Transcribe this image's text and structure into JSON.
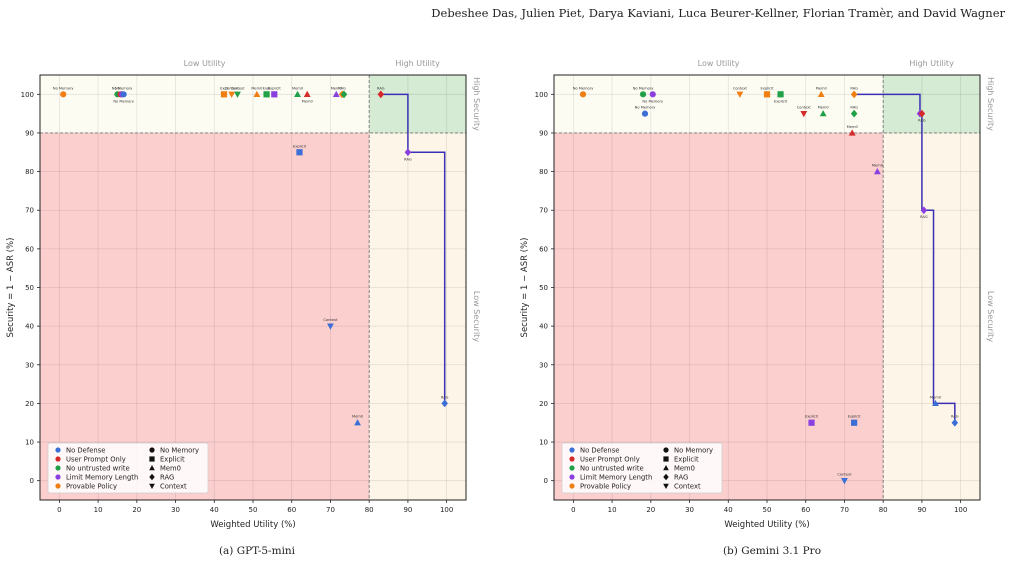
{
  "header": {
    "authors": "Debeshee Das, Julien Piet, Darya Kaviani, Luca Beurer-Kellner, Florian Tramèr, and David Wagner"
  },
  "captions": [
    "(a) GPT-5-mini",
    "(b) Gemini 3.1 Pro"
  ],
  "colors": {
    "No Defense": "#3b6fd6",
    "User Prompt Only": "#d62a2a",
    "No untrusted write": "#21a147",
    "Limit Memory Length": "#8a3fe0",
    "Provable Policy": "#f07f13",
    "frontier": "#3a2fb5",
    "low_zone": "#fccfcf",
    "mixed_zone": "#fdf5e7",
    "high_zone": "#d5ebd4",
    "top_band": "#fdfcf3"
  },
  "chart_data": [
    {
      "type": "scatter",
      "title": "",
      "xlabel": "Weighted Utility (%)",
      "ylabel": "Security = 1 − ASR (%)",
      "xlim": [
        -5,
        105
      ],
      "ylim": [
        -5,
        105
      ],
      "xticks": [
        0,
        10,
        20,
        30,
        40,
        50,
        60,
        70,
        80,
        90,
        100
      ],
      "yticks": [
        0,
        10,
        20,
        30,
        40,
        50,
        60,
        70,
        80,
        90,
        100
      ],
      "grid": true,
      "thresholds": {
        "utility": 80,
        "security": 90
      },
      "region_labels": {
        "low_utility": "Low Utility",
        "high_utility": "High Utility",
        "high_security": "High Security",
        "low_security": "Low Security"
      },
      "legend_placement": "lower-left",
      "legend_defenses": [
        "No Defense",
        "User Prompt Only",
        "No untrusted write",
        "Limit Memory Length",
        "Provable Policy"
      ],
      "legend_memory": [
        {
          "label": "No Memory",
          "marker": "circle"
        },
        {
          "label": "Explicit",
          "marker": "square"
        },
        {
          "label": "Mem0",
          "marker": "triangle-up"
        },
        {
          "label": "RAG",
          "marker": "diamond"
        },
        {
          "label": "Context",
          "marker": "triangle-down"
        }
      ],
      "points": [
        {
          "x": 1,
          "y": 100,
          "defense": "Provable Policy",
          "memory": "No Memory",
          "label": "No Memory",
          "pos": "above"
        },
        {
          "x": 15,
          "y": 100,
          "defense": "No untrusted write",
          "memory": "No Memory",
          "label": "No",
          "pos": "above"
        },
        {
          "x": 15.8,
          "y": 100,
          "defense": "User Prompt Only",
          "memory": "No Memory",
          "label": "",
          "pos": "above"
        },
        {
          "x": 16.2,
          "y": 100,
          "defense": "Limit Memory Length",
          "memory": "No Memory",
          "label": "No Memory",
          "pos": "above"
        },
        {
          "x": 16.6,
          "y": 100,
          "defense": "No Defense",
          "memory": "No Memory",
          "label": "No Memory",
          "pos": "below"
        },
        {
          "x": 42.5,
          "y": 100,
          "defense": "Provable Policy",
          "memory": "Explicit",
          "label": "Expl",
          "pos": "above"
        },
        {
          "x": 44.5,
          "y": 100,
          "defense": "Provable Policy",
          "memory": "Context",
          "label": "Context",
          "pos": "above"
        },
        {
          "x": 46,
          "y": 100,
          "defense": "No untrusted write",
          "memory": "Context",
          "label": "Context",
          "pos": "above"
        },
        {
          "x": 51,
          "y": 100,
          "defense": "Provable Policy",
          "memory": "Mem0",
          "label": "Mem0",
          "pos": "above"
        },
        {
          "x": 53.5,
          "y": 100,
          "defense": "No untrusted write",
          "memory": "Explicit",
          "label": "Expl",
          "pos": "above"
        },
        {
          "x": 55.5,
          "y": 100,
          "defense": "Limit Memory Length",
          "memory": "Explicit",
          "label": "Explicit",
          "pos": "above"
        },
        {
          "x": 61.5,
          "y": 100,
          "defense": "No untrusted write",
          "memory": "Mem0",
          "label": "Mem0",
          "pos": "above"
        },
        {
          "x": 64,
          "y": 100,
          "defense": "User Prompt Only",
          "memory": "Mem0",
          "label": "Mem0",
          "pos": "below"
        },
        {
          "x": 71.5,
          "y": 100,
          "defense": "Limit Memory Length",
          "memory": "Mem0",
          "label": "Mem0",
          "pos": "above"
        },
        {
          "x": 73,
          "y": 100,
          "defense": "Provable Policy",
          "memory": "RAG",
          "label": "RAG",
          "pos": "above"
        },
        {
          "x": 73.5,
          "y": 100,
          "defense": "No untrusted write",
          "memory": "RAG",
          "label": "",
          "pos": "above"
        },
        {
          "x": 83,
          "y": 100,
          "defense": "User Prompt Only",
          "memory": "RAG",
          "label": "RAG",
          "pos": "above"
        },
        {
          "x": 62,
          "y": 85,
          "defense": "No Defense",
          "memory": "Explicit",
          "label": "Explicit",
          "pos": "above"
        },
        {
          "x": 90,
          "y": 85,
          "defense": "Limit Memory Length",
          "memory": "RAG",
          "label": "RAG",
          "pos": "below"
        },
        {
          "x": 70,
          "y": 40,
          "defense": "No Defense",
          "memory": "Context",
          "label": "Context",
          "pos": "above"
        },
        {
          "x": 99.5,
          "y": 20,
          "defense": "No Defense",
          "memory": "RAG",
          "label": "RAG",
          "pos": "above"
        },
        {
          "x": 77,
          "y": 15,
          "defense": "No Defense",
          "memory": "Mem0",
          "label": "Mem0",
          "pos": "above"
        }
      ],
      "frontier": [
        [
          83,
          100
        ],
        [
          90,
          100
        ],
        [
          90,
          85
        ],
        [
          99.5,
          85
        ],
        [
          99.5,
          20
        ]
      ]
    },
    {
      "type": "scatter",
      "title": "",
      "xlabel": "Weighted Utility (%)",
      "ylabel": "Security = 1 − ASR (%)",
      "xlim": [
        -5,
        105
      ],
      "ylim": [
        -5,
        105
      ],
      "xticks": [
        0,
        10,
        20,
        30,
        40,
        50,
        60,
        70,
        80,
        90,
        100
      ],
      "yticks": [
        0,
        10,
        20,
        30,
        40,
        50,
        60,
        70,
        80,
        90,
        100
      ],
      "grid": true,
      "thresholds": {
        "utility": 80,
        "security": 90
      },
      "region_labels": {
        "low_utility": "Low Utility",
        "high_utility": "High Utility",
        "high_security": "High Security",
        "low_security": "Low Security"
      },
      "legend_placement": "lower-left",
      "legend_defenses": [
        "No Defense",
        "User Prompt Only",
        "No untrusted write",
        "Limit Memory Length",
        "Provable Policy"
      ],
      "legend_memory": [
        {
          "label": "No Memory",
          "marker": "circle"
        },
        {
          "label": "Explicit",
          "marker": "square"
        },
        {
          "label": "Mem0",
          "marker": "triangle-up"
        },
        {
          "label": "RAG",
          "marker": "diamond"
        },
        {
          "label": "Context",
          "marker": "triangle-down"
        }
      ],
      "points": [
        {
          "x": 2.5,
          "y": 100,
          "defense": "Provable Policy",
          "memory": "No Memory",
          "label": "No Memory",
          "pos": "above"
        },
        {
          "x": 18,
          "y": 100,
          "defense": "No untrusted write",
          "memory": "No Memory",
          "label": "No Memory",
          "pos": "above"
        },
        {
          "x": 20.5,
          "y": 100,
          "defense": "Limit Memory Length",
          "memory": "No Memory",
          "label": "No Memory",
          "pos": "below"
        },
        {
          "x": 18.5,
          "y": 95,
          "defense": "No Defense",
          "memory": "No Memory",
          "label": "No Memory",
          "pos": "above"
        },
        {
          "x": 43,
          "y": 100,
          "defense": "Provable Policy",
          "memory": "Context",
          "label": "Context",
          "pos": "above"
        },
        {
          "x": 50,
          "y": 100,
          "defense": "Provable Policy",
          "memory": "Explicit",
          "label": "Explicit",
          "pos": "above"
        },
        {
          "x": 53.5,
          "y": 100,
          "defense": "No untrusted write",
          "memory": "Explicit",
          "label": "Explicit",
          "pos": "below"
        },
        {
          "x": 64,
          "y": 100,
          "defense": "Provable Policy",
          "memory": "Mem0",
          "label": "Mem0",
          "pos": "above"
        },
        {
          "x": 72.5,
          "y": 100,
          "defense": "Provable Policy",
          "memory": "RAG",
          "label": "RAG",
          "pos": "above"
        },
        {
          "x": 59.5,
          "y": 95,
          "defense": "User Prompt Only",
          "memory": "Context",
          "label": "Context",
          "pos": "above"
        },
        {
          "x": 64.5,
          "y": 95,
          "defense": "No untrusted write",
          "memory": "Mem0",
          "label": "Mem0",
          "pos": "above"
        },
        {
          "x": 72.5,
          "y": 95,
          "defense": "No untrusted write",
          "memory": "RAG",
          "label": "RAG",
          "pos": "above"
        },
        {
          "x": 72,
          "y": 90,
          "defense": "User Prompt Only",
          "memory": "Mem0",
          "label": "Mem0",
          "pos": "above"
        },
        {
          "x": 89.5,
          "y": 95,
          "defense": "Limit Memory Length",
          "memory": "RAG",
          "label": "",
          "pos": "above"
        },
        {
          "x": 90,
          "y": 95,
          "defense": "User Prompt Only",
          "memory": "RAG",
          "label": "RAG",
          "pos": "below"
        },
        {
          "x": 78.5,
          "y": 80,
          "defense": "Limit Memory Length",
          "memory": "Mem0",
          "label": "Mem0",
          "pos": "above"
        },
        {
          "x": 90.5,
          "y": 70,
          "defense": "Limit Memory Length",
          "memory": "RAG",
          "label": "RAG",
          "pos": "below"
        },
        {
          "x": 93.5,
          "y": 20,
          "defense": "No Defense",
          "memory": "Mem0",
          "label": "Mem0",
          "pos": "above"
        },
        {
          "x": 98.5,
          "y": 15,
          "defense": "No Defense",
          "memory": "RAG",
          "label": "RAG",
          "pos": "above"
        },
        {
          "x": 61.5,
          "y": 15,
          "defense": "Limit Memory Length",
          "memory": "Explicit",
          "label": "Explicit",
          "pos": "above"
        },
        {
          "x": 72.5,
          "y": 15,
          "defense": "No Defense",
          "memory": "Explicit",
          "label": "Explicit",
          "pos": "above"
        },
        {
          "x": 70,
          "y": 0,
          "defense": "No Defense",
          "memory": "Context",
          "label": "Context",
          "pos": "above"
        }
      ],
      "frontier": [
        [
          72.5,
          100
        ],
        [
          89.5,
          100
        ],
        [
          89.5,
          95
        ],
        [
          90,
          95
        ],
        [
          90,
          70
        ],
        [
          93,
          70
        ],
        [
          93,
          20
        ],
        [
          98.5,
          20
        ],
        [
          98.5,
          15
        ]
      ]
    }
  ]
}
